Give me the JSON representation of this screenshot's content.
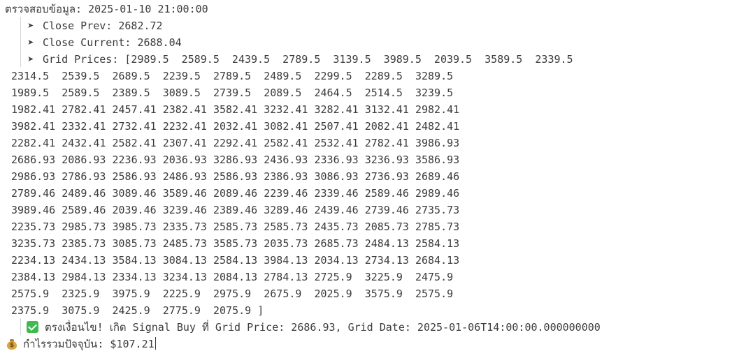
{
  "output": {
    "header": "ตรวจสอบข้อมูล: 2025-01-10 21:00:00",
    "arrow_icon": "➤",
    "close_prev": "Close Prev: 2682.72",
    "close_current": "Close Current: 2688.04",
    "grid_prices_first": "Grid Prices: [2989.5  2589.5  2439.5  2789.5  3139.5  3989.5  2039.5  3589.5  2339.5",
    "grid_lines": [
      "2314.5  2539.5  2689.5  2239.5  2789.5  2489.5  2299.5  2289.5  3289.5",
      "1989.5  2589.5  2389.5  3089.5  2739.5  2089.5  2464.5  2514.5  3239.5",
      "1982.41 2782.41 2457.41 2382.41 3582.41 3232.41 3282.41 3132.41 2982.41",
      "3982.41 2332.41 2732.41 2232.41 2032.41 3082.41 2507.41 2082.41 2482.41",
      "2282.41 2432.41 2582.41 2307.41 2292.41 2582.41 2532.41 2782.41 3986.93",
      "2686.93 2086.93 2236.93 2036.93 3286.93 2436.93 2336.93 3236.93 3586.93",
      "2986.93 2786.93 2586.93 2486.93 2586.93 2386.93 3086.93 2736.93 2689.46",
      "2789.46 2489.46 3089.46 3589.46 2089.46 2239.46 2339.46 2589.46 2989.46",
      "3989.46 2589.46 2039.46 3239.46 2389.46 3289.46 2439.46 2739.46 2735.73",
      "2235.73 2985.73 3985.73 2335.73 2585.73 2585.73 2435.73 2085.73 2785.73",
      "3235.73 2385.73 3085.73 2485.73 3585.73 2035.73 2685.73 2484.13 2584.13",
      "2234.13 2434.13 3584.13 3084.13 2584.13 3984.13 2034.13 2734.13 2684.13",
      "2384.13 2984.13 2334.13 3234.13 2084.13 2784.13 2725.9  3225.9  2475.9",
      "2575.9  2325.9  3975.9  2225.9  2975.9  2675.9  2025.9  3575.9  2575.9",
      "2375.9  3075.9  2425.9  2775.9  2075.9 ]"
    ],
    "signal": "ตรงเงื่อนไข! เกิด Signal Buy ที่ Grid Price: 2686.93, Grid Date: 2025-01-06T14:00:00.000000000",
    "profit": "กำไรรวมปัจจุบัน: $107.21",
    "moneybag_sign": "$"
  },
  "colors": {
    "background": "#ffffff",
    "text": "#3b3b3b",
    "check_green": "#3fb950",
    "moneybag_gold": "#d9a441"
  },
  "icons": {
    "arrow": "arrow-icon",
    "check": "check-mark-icon",
    "money": "money-bag-icon"
  }
}
